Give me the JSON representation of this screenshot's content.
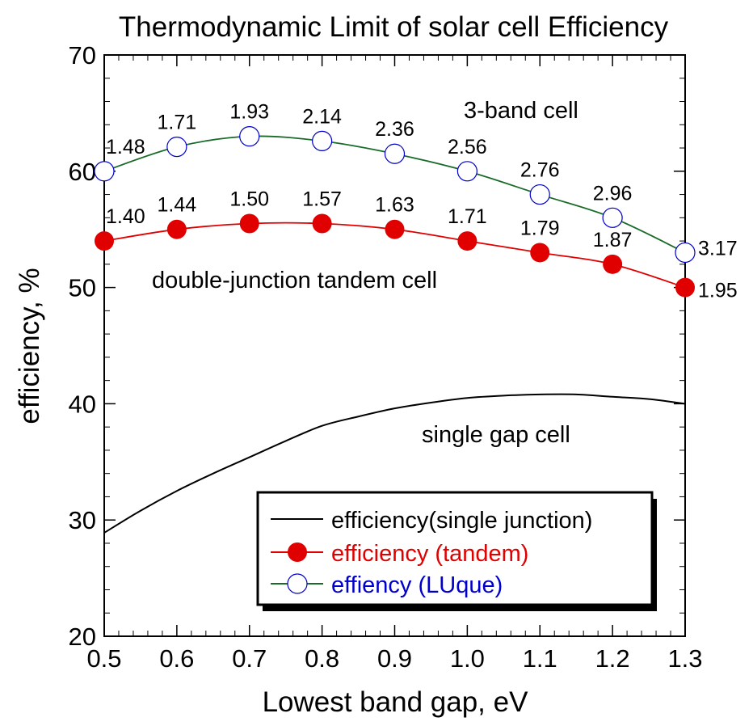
{
  "chart_data": {
    "type": "line",
    "title": "Thermodynamic Limit of solar cell Efficiency",
    "xlabel": "Lowest band gap, eV",
    "ylabel": "efficiency, %",
    "xlim": [
      0.5,
      1.3
    ],
    "ylim": [
      20,
      70
    ],
    "x_ticks": [
      "0.5",
      "0.6",
      "0.7",
      "0.8",
      "0.9",
      "1.0",
      "1.1",
      "1.2",
      "1.3"
    ],
    "y_ticks": [
      "20",
      "30",
      "40",
      "50",
      "60",
      "70"
    ],
    "grid": false,
    "legend_position": "bottom-right",
    "series": [
      {
        "name": "efficiency(single junction)",
        "color": "#000000",
        "marker": "none",
        "x": [
          0.5,
          0.55,
          0.6,
          0.65,
          0.7,
          0.75,
          0.8,
          0.85,
          0.9,
          0.95,
          1.0,
          1.05,
          1.1,
          1.15,
          1.2,
          1.25,
          1.3
        ],
        "values": [
          28.9,
          30.8,
          32.5,
          34.0,
          35.4,
          36.8,
          38.1,
          38.9,
          39.6,
          40.1,
          40.5,
          40.7,
          40.8,
          40.8,
          40.6,
          40.4,
          40.0
        ]
      },
      {
        "name": "efficiency (tandem)",
        "color": "#e00000",
        "line_color": "#e00000",
        "marker": "filled-circle",
        "x": [
          0.5,
          0.6,
          0.7,
          0.8,
          0.9,
          1.0,
          1.1,
          1.2,
          1.3
        ],
        "values": [
          54.0,
          55.0,
          55.5,
          55.5,
          55.0,
          54.0,
          53.0,
          52.0,
          50.0
        ],
        "point_labels": [
          "1.40",
          "1.44",
          "1.50",
          "1.57",
          "1.63",
          "1.71",
          "1.79",
          "1.87",
          "1.95"
        ]
      },
      {
        "name": "effiency (LUque)",
        "color": "#0000cc",
        "line_color": "#1a6b2a",
        "marker": "open-circle",
        "x": [
          0.5,
          0.6,
          0.7,
          0.8,
          0.9,
          1.0,
          1.1,
          1.2,
          1.3
        ],
        "values": [
          60.0,
          62.1,
          63.0,
          62.6,
          61.5,
          60.0,
          58.0,
          56.0,
          53.0
        ],
        "point_labels": [
          "1.48",
          "1.71",
          "1.93",
          "2.14",
          "2.36",
          "2.56",
          "2.76",
          "2.96",
          "3.17"
        ]
      }
    ],
    "annotations": [
      "3-band cell",
      "double-junction tandem cell",
      "single gap cell"
    ]
  }
}
